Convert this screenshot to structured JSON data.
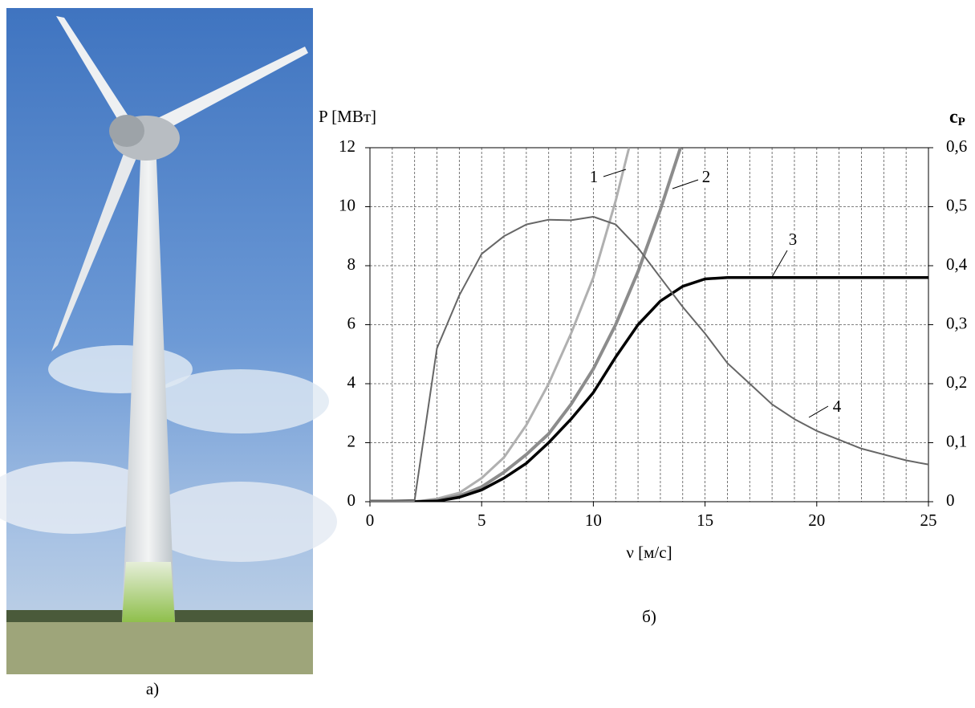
{
  "chart_data": {
    "type": "line",
    "left_caption": "а)",
    "caption": "б)",
    "x_label": "ν [м/с]",
    "y_label": "P [МВт]",
    "y2_label": "c",
    "y2_label_sub": "P",
    "xlim": [
      0,
      25
    ],
    "xticks": [
      0,
      5,
      10,
      15,
      20,
      25
    ],
    "xminorticks": [
      0,
      1,
      2,
      3,
      4,
      5,
      6,
      7,
      8,
      9,
      10,
      11,
      12,
      13,
      14,
      15,
      16,
      17,
      18,
      19,
      20,
      21,
      22,
      23,
      24,
      25
    ],
    "ylim": [
      0,
      12
    ],
    "yticks": [
      0,
      2,
      4,
      6,
      8,
      10,
      12
    ],
    "y2lim": [
      0,
      0.6
    ],
    "y2ticks": [
      0,
      {
        "value": 0.1,
        "label": "0,1"
      },
      {
        "value": 0.2,
        "label": "0,2"
      },
      {
        "value": 0.3,
        "label": "0,3"
      },
      {
        "value": 0.4,
        "label": "0,4"
      },
      {
        "value": 0.5,
        "label": "0,5"
      },
      {
        "value": 0.6,
        "label": "0,6"
      }
    ],
    "grid": true,
    "series": [
      {
        "name": "1",
        "color": "#b0b0b0",
        "x": [
          0,
          1,
          2,
          3,
          4,
          5,
          6,
          7,
          8,
          9,
          10,
          11,
          11.6
        ],
        "values": [
          0,
          0,
          0,
          0.1,
          0.3,
          0.8,
          1.5,
          2.6,
          4.0,
          5.7,
          7.6,
          10.2,
          12
        ]
      },
      {
        "name": "2",
        "color": "#8c8c8c",
        "x": [
          0,
          1,
          2,
          3,
          4,
          5,
          6,
          7,
          8,
          9,
          10,
          11,
          12,
          13,
          13.9
        ],
        "values": [
          0,
          0,
          0,
          0.05,
          0.2,
          0.5,
          1.0,
          1.6,
          2.3,
          3.3,
          4.5,
          6.0,
          7.8,
          9.9,
          12
        ]
      },
      {
        "name": "3",
        "color": "#000000",
        "x": [
          2,
          3,
          4,
          5,
          6,
          7,
          8,
          9,
          10,
          11,
          12,
          13,
          14,
          15,
          16,
          17,
          18,
          19,
          20,
          21,
          22,
          23,
          24,
          25
        ],
        "values": [
          0,
          0.02,
          0.15,
          0.4,
          0.8,
          1.3,
          2.0,
          2.8,
          3.7,
          4.9,
          6.0,
          6.8,
          7.3,
          7.55,
          7.6,
          7.6,
          7.6,
          7.6,
          7.6,
          7.6,
          7.6,
          7.6,
          7.6,
          7.6
        ]
      },
      {
        "name": "4",
        "color": "#666666",
        "axis": "y2",
        "x": [
          0,
          1,
          2,
          3,
          4,
          5,
          6,
          7,
          8,
          9,
          10,
          11,
          12,
          13,
          14,
          15,
          16,
          17,
          18,
          19,
          20,
          21,
          22,
          23,
          24,
          25
        ],
        "values": [
          0.002,
          0.002,
          0.003,
          0.26,
          0.35,
          0.42,
          0.45,
          0.47,
          0.478,
          0.477,
          0.483,
          0.47,
          0.43,
          0.38,
          0.33,
          0.285,
          0.235,
          0.2,
          0.165,
          0.14,
          0.12,
          0.105,
          0.09,
          0.08,
          0.07,
          0.063
        ]
      }
    ]
  }
}
